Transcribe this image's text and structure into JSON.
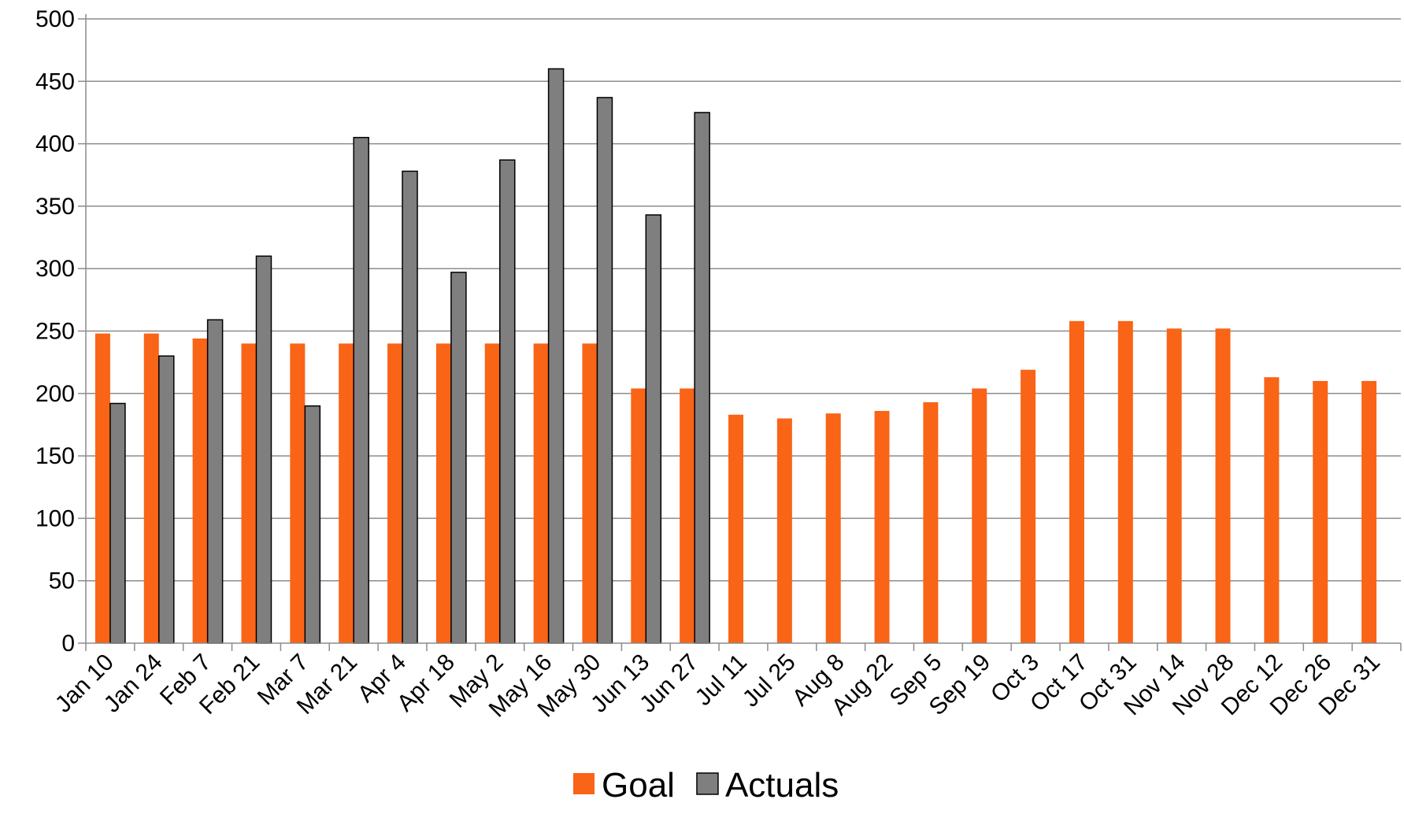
{
  "chart_data": {
    "type": "bar",
    "categories": [
      "Jan 10",
      "Jan 24",
      "Feb 7",
      "Feb 21",
      "Mar 7",
      "Mar 21",
      "Apr 4",
      "Apr 18",
      "May 2",
      "May 16",
      "May 30",
      "Jun 13",
      "Jun 27",
      "Jul 11",
      "Jul 25",
      "Aug 8",
      "Aug 22",
      "Sep 5",
      "Sep 19",
      "Oct 3",
      "Oct 17",
      "Oct 31",
      "Nov 14",
      "Nov 28",
      "Dec 12",
      "Dec 26",
      "Dec 31"
    ],
    "series": [
      {
        "name": "Goal",
        "color": "#f96417",
        "values": [
          248,
          248,
          244,
          240,
          240,
          240,
          240,
          240,
          240,
          240,
          240,
          204,
          204,
          183,
          180,
          184,
          186,
          193,
          204,
          219,
          258,
          258,
          252,
          252,
          213,
          210,
          210
        ]
      },
      {
        "name": "Actuals",
        "color": "#7f7f7f",
        "values": [
          192,
          230,
          259,
          310,
          190,
          405,
          378,
          297,
          387,
          460,
          437,
          343,
          425,
          null,
          null,
          null,
          null,
          null,
          null,
          null,
          null,
          null,
          null,
          null,
          null,
          null,
          null
        ]
      }
    ],
    "ylim": [
      0,
      500
    ],
    "yticks": [
      0,
      50,
      100,
      150,
      200,
      250,
      300,
      350,
      400,
      450,
      500
    ],
    "grid": true,
    "legend_position": "bottom-center",
    "title": "",
    "xlabel": "",
    "ylabel": ""
  }
}
